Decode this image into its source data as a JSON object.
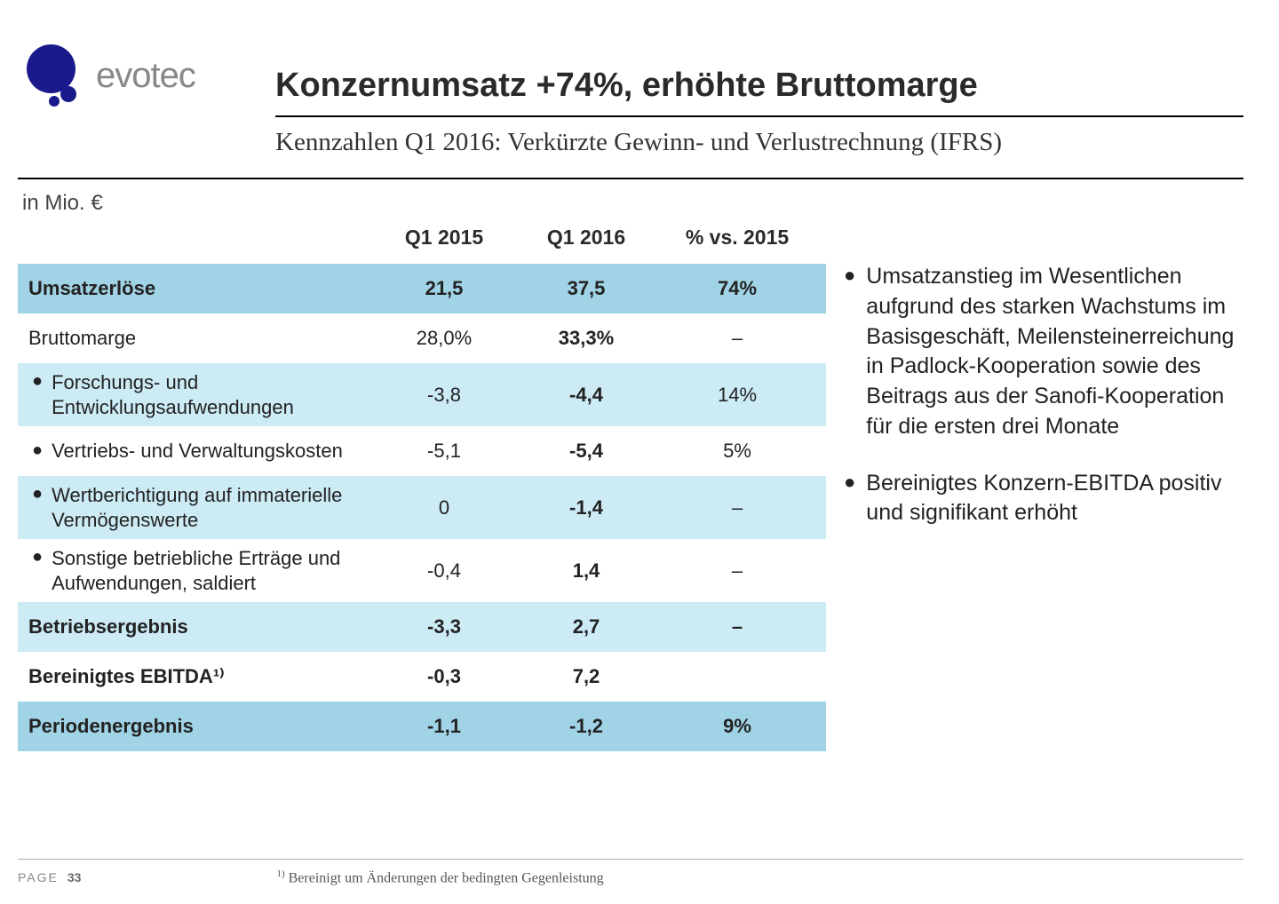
{
  "logo": {
    "text": "evotec"
  },
  "title": "Konzernumsatz +74%, erhöhte Bruttomarge",
  "subtitle": "Kennzahlen Q1 2016: Verkürzte Gewinn- und Verlustrechnung (IFRS)",
  "unit_label": "in Mio. €",
  "table": {
    "columns": {
      "q1": "Q1 2015",
      "q2": "Q1 2016",
      "pct": "% vs. 2015"
    },
    "rows": [
      {
        "label": "Umsatzerlöse",
        "q1": "21,5",
        "q2": "37,5",
        "pct": "74%",
        "bold": true,
        "bullet": false,
        "highlight": "dark"
      },
      {
        "label": "Bruttomarge",
        "q1": "28,0%",
        "q2": "33,3%",
        "pct": "–",
        "bold": false,
        "bullet": false,
        "highlight": "none"
      },
      {
        "label": "Forschungs- und Entwicklungsaufwendungen",
        "q1": "-3,8",
        "q2": "-4,4",
        "pct": "14%",
        "bold": false,
        "bullet": true,
        "highlight": "light",
        "twoline": true
      },
      {
        "label": "Vertriebs- und Verwaltungskosten",
        "q1": "-5,1",
        "q2": "-5,4",
        "pct": "5%",
        "bold": false,
        "bullet": true,
        "highlight": "none"
      },
      {
        "label": "Wertberichtigung auf immaterielle Vermögenswerte",
        "q1": "0",
        "q2": "-1,4",
        "pct": "–",
        "bold": false,
        "bullet": true,
        "highlight": "light",
        "twoline": true
      },
      {
        "label": "Sonstige betriebliche Erträge und Aufwendungen, saldiert",
        "q1": "-0,4",
        "q2": "1,4",
        "pct": "–",
        "bold": false,
        "bullet": true,
        "highlight": "none",
        "twoline": true
      },
      {
        "label": "Betriebsergebnis",
        "q1": "-3,3",
        "q2": "2,7",
        "pct": "–",
        "bold": true,
        "bullet": false,
        "highlight": "light"
      },
      {
        "label": "Bereinigtes EBITDA¹⁾",
        "q1": "-0,3",
        "q2": "7,2",
        "pct": "",
        "bold": true,
        "bullet": false,
        "highlight": "none"
      },
      {
        "label": "Periodenergebnis",
        "q1": "-1,1",
        "q2": "-1,2",
        "pct": "9%",
        "bold": true,
        "bullet": false,
        "highlight": "dark"
      }
    ]
  },
  "sidebar": {
    "items": [
      "Umsatzanstieg im Wesentlichen aufgrund des starken Wachstums im Basisgeschäft, Meilensteinerreichung in Padlock-Kooperation sowie des Beitrags aus der Sanofi-Kooperation für die ersten drei Monate",
      "Bereinigtes Konzern-EBITDA positiv und signifikant erhöht"
    ]
  },
  "footer": {
    "page_label": "PAGE",
    "page_num": "33",
    "footnote": "Bereinigt um Änderungen der bedingten Gegenleistung"
  },
  "colors": {
    "brand": "#1a1a8c",
    "highlight_dark": "#a1d3e6",
    "highlight_light": "#ccebf5",
    "text": "#2a2a2a",
    "muted": "#888888"
  }
}
